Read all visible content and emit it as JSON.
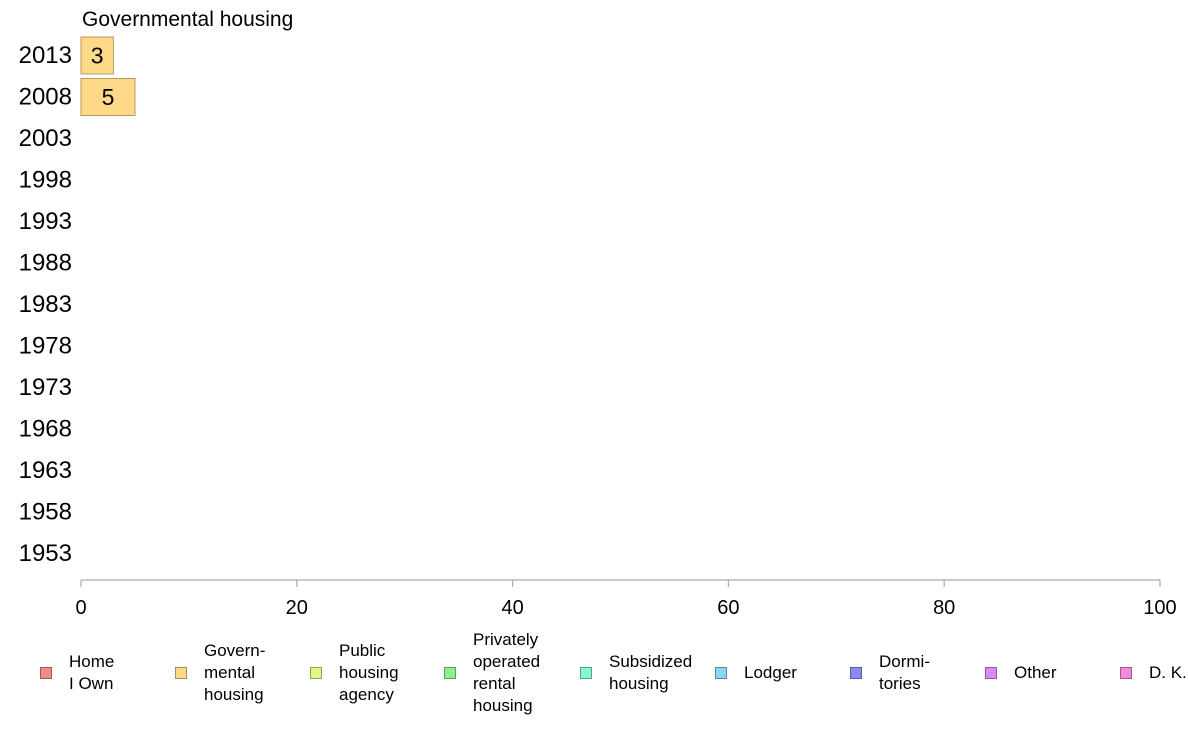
{
  "chart_data": {
    "type": "bar",
    "orientation": "horizontal",
    "title": "Governmental housing",
    "categories": [
      "2013",
      "2008",
      "2003",
      "1998",
      "1993",
      "1988",
      "1983",
      "1978",
      "1973",
      "1968",
      "1963",
      "1958",
      "1953"
    ],
    "series": [
      {
        "name": "Govern-\nmental\n housing",
        "color": "#ffd98a",
        "values": [
          3,
          5,
          null,
          null,
          null,
          null,
          null,
          null,
          null,
          null,
          null,
          null,
          null
        ]
      }
    ],
    "xlim": [
      0,
      100
    ],
    "xticks": [
      "0",
      "20",
      "40",
      "60",
      "80",
      "100"
    ],
    "grid": false,
    "legend_position": "bottom"
  },
  "legend": [
    {
      "label": "Home\nI Own",
      "color": "#f28a8a"
    },
    {
      "label": "Govern-\nmental\n housing",
      "color": "#ffd98a"
    },
    {
      "label": "Public\nhousing\nagency",
      "color": "#ddf88a"
    },
    {
      "label": "Privately\noperated\nrental\nhousing",
      "color": "#8ef08a"
    },
    {
      "label": "Subsidized\n housing",
      "color": "#8af5d4"
    },
    {
      "label": "Lodger",
      "color": "#8ad6f2"
    },
    {
      "label": "Dormi-\ntories",
      "color": "#8a8af2"
    },
    {
      "label": "Other",
      "color": "#dc8af5"
    },
    {
      "label": "D. K.",
      "color": "#f58ad6"
    }
  ]
}
